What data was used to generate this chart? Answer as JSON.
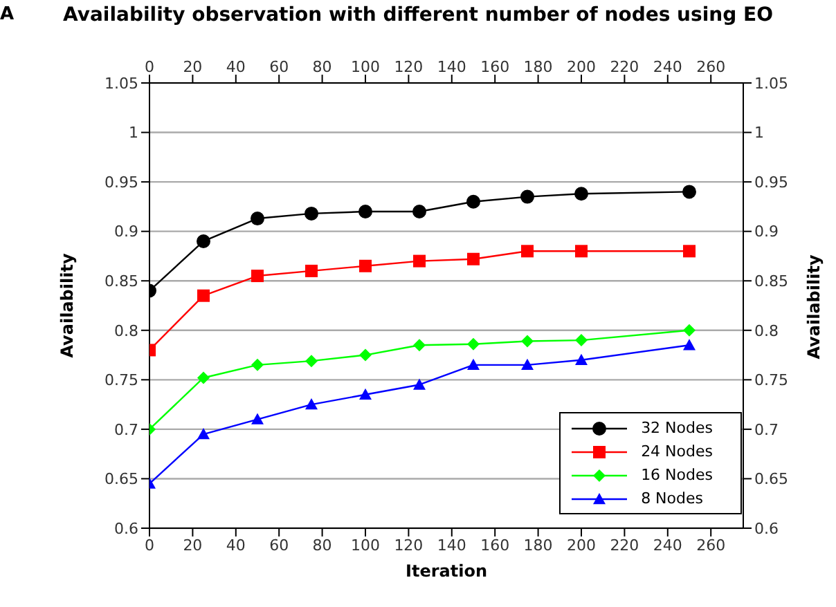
{
  "chart_data": {
    "type": "line",
    "title": "Availability observation with different number of nodes using EO",
    "xlabel": "Iteration",
    "ylabel": "Availability",
    "y2label": "Availability",
    "annotations": [
      "A"
    ],
    "x": [
      0,
      25,
      50,
      75,
      100,
      125,
      150,
      175,
      200,
      250
    ],
    "series": [
      {
        "name": "32 Nodes",
        "color": "#000000",
        "marker": "circle",
        "values": [
          0.84,
          0.89,
          0.913,
          0.918,
          0.92,
          0.92,
          0.93,
          0.935,
          0.938,
          0.94
        ]
      },
      {
        "name": "24 Nodes",
        "color": "#ff0000",
        "marker": "square",
        "values": [
          0.78,
          0.835,
          0.855,
          0.86,
          0.865,
          0.87,
          0.872,
          0.88,
          0.88,
          0.88
        ]
      },
      {
        "name": "16 Nodes",
        "color": "#00ff00",
        "marker": "diamond",
        "values": [
          0.7,
          0.752,
          0.765,
          0.769,
          0.775,
          0.785,
          0.786,
          0.789,
          0.79,
          0.8
        ]
      },
      {
        "name": "8 Nodes",
        "color": "#0000ff",
        "marker": "triangle",
        "values": [
          0.645,
          0.695,
          0.71,
          0.725,
          0.735,
          0.745,
          0.765,
          0.765,
          0.77,
          0.785
        ]
      }
    ],
    "xlim": [
      0,
      275
    ],
    "xticks": [
      0,
      20,
      40,
      60,
      80,
      100,
      120,
      140,
      160,
      180,
      200,
      220,
      240,
      260
    ],
    "x2lim": [
      0,
      275
    ],
    "x2ticks": [
      0,
      20,
      40,
      60,
      80,
      100,
      120,
      140,
      160,
      180,
      200,
      220,
      240,
      260
    ],
    "ylim": [
      0.6,
      1.05
    ],
    "yticks": [
      0.6,
      0.65,
      0.7,
      0.75,
      0.8,
      0.85,
      0.9,
      0.95,
      1,
      1.05
    ],
    "y2lim": [
      0.6,
      1.05
    ],
    "y2ticks": [
      0.6,
      0.65,
      0.7,
      0.75,
      0.8,
      0.85,
      0.9,
      0.95,
      1,
      1.05
    ],
    "grid": "y",
    "legend": "bottom right",
    "line_style": "solid"
  }
}
